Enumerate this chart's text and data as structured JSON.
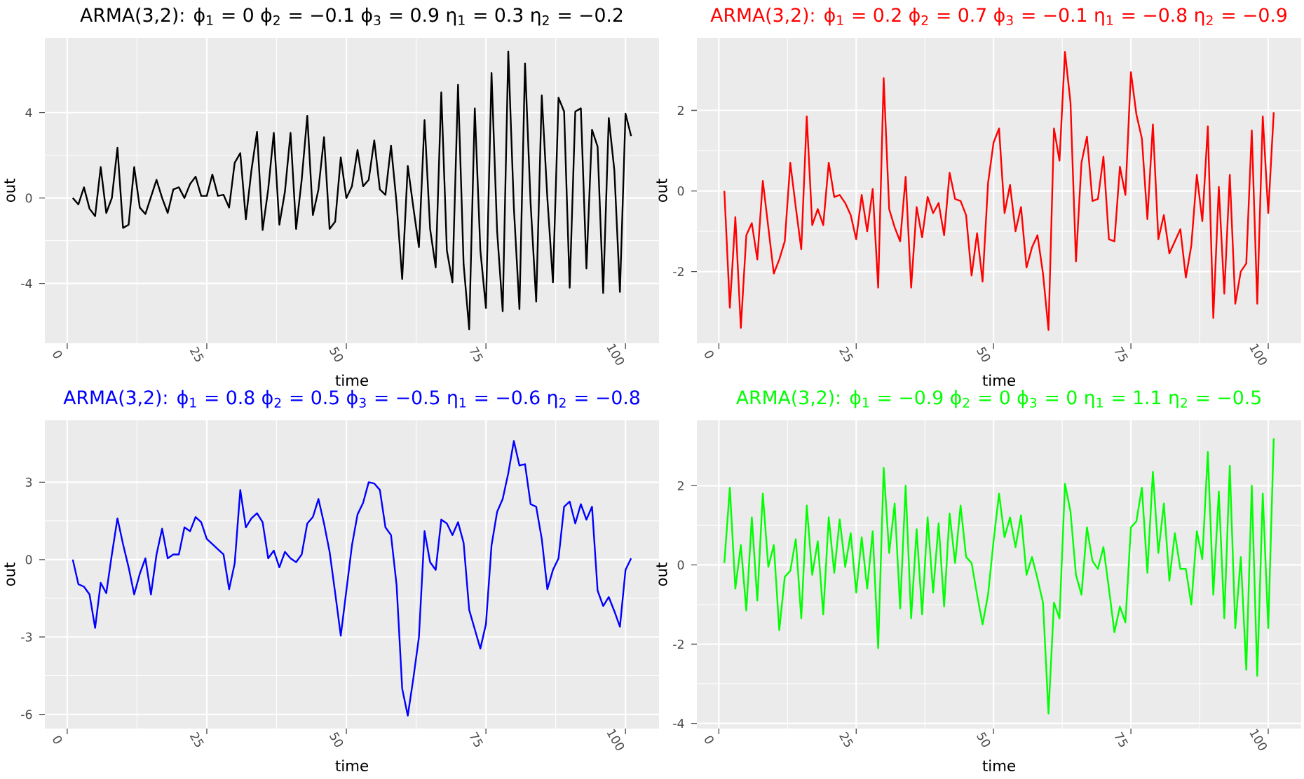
{
  "chart_data": [
    {
      "type": "line",
      "title": "ARMA(3,2): ϕ$_{1}$ = 0  ϕ$_{2}$ = −0.1  ϕ$_{3}$ = 0.9  η$_{1}$ = 0.3  η$_{2}$ = −0.2",
      "xlabel": "time",
      "ylabel": "out",
      "grid": true,
      "x": [
        1,
        2,
        3,
        4,
        5,
        6,
        7,
        8,
        9,
        10,
        11,
        12,
        13,
        14,
        15,
        16,
        17,
        18,
        19,
        20,
        21,
        22,
        23,
        24,
        25,
        26,
        27,
        28,
        29,
        30,
        31,
        32,
        33,
        34,
        35,
        36,
        37,
        38,
        39,
        40,
        41,
        42,
        43,
        44,
        45,
        46,
        47,
        48,
        49,
        50,
        51,
        52,
        53,
        54,
        55,
        56,
        57,
        58,
        59,
        60,
        61,
        62,
        63,
        64,
        65,
        66,
        67,
        68,
        69,
        70,
        71,
        72,
        73,
        74,
        75,
        76,
        77,
        78,
        79,
        80,
        81,
        82,
        83,
        84,
        85,
        86,
        87,
        88,
        89,
        90,
        91,
        92,
        93,
        94,
        95,
        96,
        97,
        98,
        99,
        100,
        101
      ],
      "series": [
        {
          "color": "#000000",
          "values": [
            0,
            -0.3,
            0.5,
            -0.5,
            -0.85,
            1.45,
            -0.7,
            0,
            2.35,
            -1.4,
            -1.25,
            1.45,
            -0.45,
            -0.75,
            0.05,
            0.85,
            0,
            -0.7,
            0.4,
            0.5,
            0,
            0.65,
            1.0,
            0.1,
            0.1,
            1.1,
            0.1,
            0.15,
            -0.45,
            1.65,
            2.1,
            -1.0,
            1.3,
            3.1,
            -1.5,
            0.4,
            3.05,
            -1.25,
            0.3,
            3.05,
            -1.45,
            0.85,
            3.85,
            -0.8,
            0.4,
            2.85,
            -1.45,
            -1.1,
            1.9,
            0,
            0.55,
            2.25,
            0.55,
            0.85,
            2.7,
            0.4,
            0.15,
            2.45,
            -0.25,
            -3.8,
            1.5,
            -0.45,
            -2.3,
            3.65,
            -1.45,
            -3.25,
            4.95,
            -2.45,
            -3.95,
            5.3,
            -3.1,
            -6.15,
            4.2,
            -2.45,
            -5.15,
            5.85,
            -1.55,
            -5.3,
            6.85,
            -0.45,
            -5.2,
            6.3,
            -0.25,
            -4.85,
            4.8,
            0,
            -3.95,
            4.7,
            4.05,
            -4.2,
            4.05,
            4.2,
            -3.3,
            3.2,
            2.4,
            -4.45,
            3.75,
            1.3,
            -4.4,
            3.95,
            2.9
          ]
        }
      ],
      "xlim": [
        -4,
        106
      ],
      "ylim": [
        -6.8,
        7.5
      ],
      "xticks": [
        0,
        25,
        50,
        75,
        100
      ],
      "yticks": [
        -4,
        0,
        4
      ]
    },
    {
      "type": "line",
      "title": "ARMA(3,2): ϕ$_{1}$ = 0.2  ϕ$_{2}$ = 0.7  ϕ$_{3}$ = −0.1  η$_{1}$ = −0.8  η$_{2}$ = −0.9",
      "xlabel": "time",
      "ylabel": "out",
      "grid": true,
      "x": [
        1,
        2,
        3,
        4,
        5,
        6,
        7,
        8,
        9,
        10,
        11,
        12,
        13,
        14,
        15,
        16,
        17,
        18,
        19,
        20,
        21,
        22,
        23,
        24,
        25,
        26,
        27,
        28,
        29,
        30,
        31,
        32,
        33,
        34,
        35,
        36,
        37,
        38,
        39,
        40,
        41,
        42,
        43,
        44,
        45,
        46,
        47,
        48,
        49,
        50,
        51,
        52,
        53,
        54,
        55,
        56,
        57,
        58,
        59,
        60,
        61,
        62,
        63,
        64,
        65,
        66,
        67,
        68,
        69,
        70,
        71,
        72,
        73,
        74,
        75,
        76,
        77,
        78,
        79,
        80,
        81,
        82,
        83,
        84,
        85,
        86,
        87,
        88,
        89,
        90,
        91,
        92,
        93,
        94,
        95,
        96,
        97,
        98,
        99,
        100,
        101
      ],
      "series": [
        {
          "color": "#ff0000",
          "values": [
            0,
            -2.9,
            -0.65,
            -3.4,
            -1.1,
            -0.8,
            -1.7,
            0.25,
            -0.9,
            -2.05,
            -1.7,
            -1.25,
            0.7,
            -0.4,
            -1.45,
            1.85,
            -0.85,
            -0.45,
            -0.85,
            0.7,
            -0.15,
            -0.1,
            -0.3,
            -0.6,
            -1.2,
            -0.1,
            -1.0,
            0.05,
            -2.4,
            2.8,
            -0.45,
            -0.9,
            -1.25,
            0.35,
            -2.4,
            -0.4,
            -1.15,
            -0.15,
            -0.55,
            -0.3,
            -1.1,
            0.45,
            -0.2,
            -0.25,
            -0.6,
            -2.1,
            -1.05,
            -2.25,
            0.2,
            1.2,
            1.55,
            -0.55,
            0.15,
            -1.0,
            -0.4,
            -1.9,
            -1.4,
            -1.1,
            -2.05,
            -3.45,
            1.55,
            0.75,
            3.45,
            2.2,
            -1.75,
            0.7,
            1.35,
            -0.25,
            -0.2,
            0.85,
            -1.2,
            -1.25,
            0.6,
            -0.1,
            2.95,
            1.9,
            1.3,
            -0.7,
            1.65,
            -1.2,
            -0.6,
            -1.55,
            -1.25,
            -0.95,
            -2.15,
            -1.35,
            0.4,
            -0.75,
            1.6,
            -3.15,
            0.1,
            -2.55,
            0.4,
            -2.8,
            -2.0,
            -1.8,
            1.5,
            -2.8,
            1.85,
            -0.55,
            1.95
          ]
        }
      ],
      "xlim": [
        -4,
        106
      ],
      "ylim": [
        -3.78,
        3.8
      ],
      "xticks": [
        0,
        25,
        50,
        75,
        100
      ],
      "yticks": [
        -2,
        0,
        2
      ]
    },
    {
      "type": "line",
      "title": "ARMA(3,2): ϕ$_{1}$ = 0.8  ϕ$_{2}$ = 0.5  ϕ$_{3}$ = −0.5  η$_{1}$ = −0.6  η$_{2}$ = −0.8",
      "xlabel": "time",
      "ylabel": "out",
      "grid": true,
      "x": [
        1,
        2,
        3,
        4,
        5,
        6,
        7,
        8,
        9,
        10,
        11,
        12,
        13,
        14,
        15,
        16,
        17,
        18,
        19,
        20,
        21,
        22,
        23,
        24,
        25,
        26,
        27,
        28,
        29,
        30,
        31,
        32,
        33,
        34,
        35,
        36,
        37,
        38,
        39,
        40,
        41,
        42,
        43,
        44,
        45,
        46,
        47,
        48,
        49,
        50,
        51,
        52,
        53,
        54,
        55,
        56,
        57,
        58,
        59,
        60,
        61,
        62,
        63,
        64,
        65,
        66,
        67,
        68,
        69,
        70,
        71,
        72,
        73,
        74,
        75,
        76,
        77,
        78,
        79,
        80,
        81,
        82,
        83,
        84,
        85,
        86,
        87,
        88,
        89,
        90,
        91,
        92,
        93,
        94,
        95,
        96,
        97,
        98,
        99,
        100,
        101
      ],
      "series": [
        {
          "color": "#0000ff",
          "values": [
            0,
            -0.95,
            -1.05,
            -1.35,
            -2.65,
            -0.9,
            -1.3,
            0.2,
            1.6,
            0.6,
            -0.3,
            -1.35,
            -0.55,
            0.05,
            -1.35,
            0.2,
            1.2,
            0.05,
            0.2,
            0.2,
            1.25,
            1.1,
            1.65,
            1.45,
            0.8,
            0.6,
            0.4,
            0.2,
            -1.15,
            -0.15,
            2.7,
            1.25,
            1.6,
            1.8,
            1.45,
            0.05,
            0.35,
            -0.3,
            0.3,
            0.05,
            -0.1,
            0.2,
            1.4,
            1.65,
            2.35,
            1.4,
            0.3,
            -1.3,
            -2.95,
            -1.2,
            0.55,
            1.75,
            2.2,
            3.0,
            2.95,
            2.7,
            1.25,
            0.95,
            -1.0,
            -5.0,
            -6.05,
            -4.6,
            -3.0,
            1.1,
            -0.1,
            -0.4,
            1.55,
            1.4,
            0.95,
            1.45,
            0.65,
            -1.95,
            -2.7,
            -3.45,
            -2.5,
            0.55,
            1.85,
            2.35,
            3.35,
            4.6,
            3.65,
            3.7,
            2.15,
            2.05,
            0.8,
            -1.15,
            -0.4,
            0.05,
            2.05,
            2.25,
            1.4,
            2.15,
            1.55,
            2.05,
            -1.2,
            -1.8,
            -1.45,
            -2.0,
            -2.6,
            -0.4,
            0.05
          ]
        }
      ],
      "xlim": [
        -4,
        106
      ],
      "ylim": [
        -6.55,
        5.4
      ],
      "xticks": [
        0,
        25,
        50,
        75,
        100
      ],
      "yticks": [
        -6,
        -3,
        0,
        3
      ]
    },
    {
      "type": "line",
      "title": "ARMA(3,2): ϕ$_{1}$ = −0.9  ϕ$_{2}$ = 0  ϕ$_{3}$ = 0  η$_{1}$ = 1.1  η$_{2}$ = −0.5",
      "xlabel": "time",
      "ylabel": "out",
      "grid": true,
      "x": [
        1,
        2,
        3,
        4,
        5,
        6,
        7,
        8,
        9,
        10,
        11,
        12,
        13,
        14,
        15,
        16,
        17,
        18,
        19,
        20,
        21,
        22,
        23,
        24,
        25,
        26,
        27,
        28,
        29,
        30,
        31,
        32,
        33,
        34,
        35,
        36,
        37,
        38,
        39,
        40,
        41,
        42,
        43,
        44,
        45,
        46,
        47,
        48,
        49,
        50,
        51,
        52,
        53,
        54,
        55,
        56,
        57,
        58,
        59,
        60,
        61,
        62,
        63,
        64,
        65,
        66,
        67,
        68,
        69,
        70,
        71,
        72,
        73,
        74,
        75,
        76,
        77,
        78,
        79,
        80,
        81,
        82,
        83,
        84,
        85,
        86,
        87,
        88,
        89,
        90,
        91,
        92,
        93,
        94,
        95,
        96,
        97,
        98,
        99,
        100,
        101
      ],
      "series": [
        {
          "color": "#00ff00",
          "values": [
            0.05,
            1.95,
            -0.6,
            0.5,
            -1.15,
            1.2,
            -0.9,
            1.8,
            -0.05,
            0.5,
            -1.65,
            -0.3,
            -0.15,
            0.65,
            -1.35,
            1.5,
            -0.25,
            0.6,
            -1.25,
            1.2,
            -0.2,
            1.15,
            -0.05,
            0.8,
            -0.7,
            0.7,
            -0.6,
            0.85,
            -2.1,
            2.45,
            0.3,
            1.55,
            -1.1,
            2.0,
            -1.35,
            0.9,
            -1.25,
            1.2,
            -0.7,
            1.05,
            -1.05,
            1.3,
            0.05,
            1.5,
            0.2,
            0.05,
            -0.75,
            -1.5,
            -0.75,
            0.6,
            1.8,
            0.7,
            1.2,
            0.45,
            1.25,
            -0.25,
            0.2,
            -0.35,
            -0.95,
            -3.75,
            -0.95,
            -1.35,
            2.05,
            1.35,
            -0.25,
            -0.75,
            0.95,
            0.1,
            -0.1,
            0.45,
            -0.6,
            -1.7,
            -1.05,
            -1.45,
            0.95,
            1.1,
            1.95,
            -0.2,
            2.35,
            0.3,
            1.55,
            -0.4,
            0.8,
            -0.1,
            -0.1,
            -1.0,
            0.85,
            0.15,
            2.85,
            -0.75,
            1.85,
            -1.35,
            2.5,
            -1.6,
            0.2,
            -2.65,
            2.0,
            -2.8,
            1.8,
            -1.6,
            3.2
          ]
        }
      ],
      "xlim": [
        -4,
        106
      ],
      "ylim": [
        -4.13,
        3.65
      ],
      "xticks": [
        0,
        25,
        50,
        75,
        100
      ],
      "yticks": [
        -4,
        -2,
        0,
        2
      ]
    }
  ]
}
